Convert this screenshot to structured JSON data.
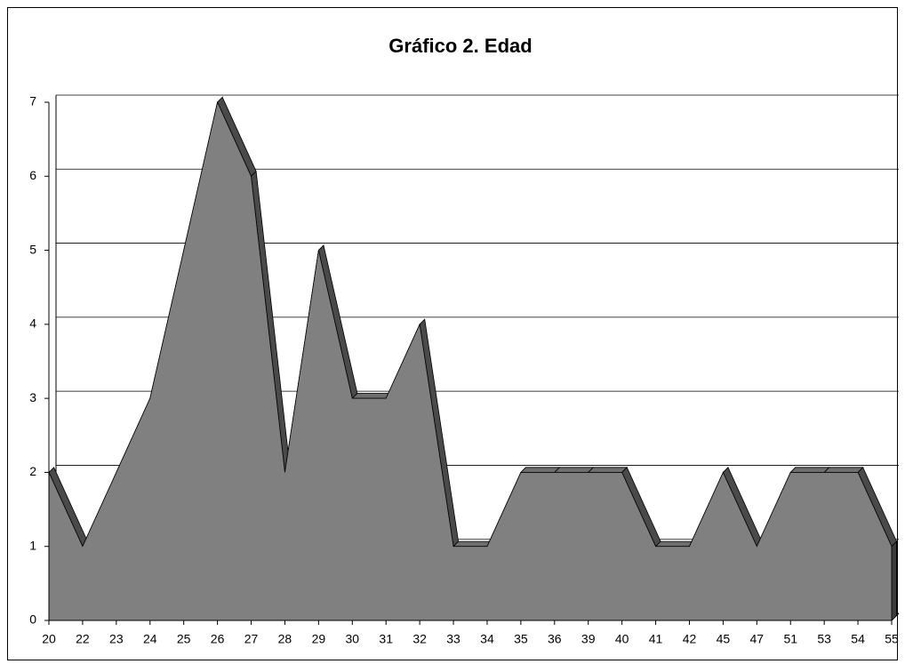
{
  "chart_data": {
    "type": "area",
    "title": "Gráfico 2. Edad",
    "categories": [
      "20",
      "22",
      "23",
      "24",
      "25",
      "26",
      "27",
      "28",
      "29",
      "30",
      "31",
      "32",
      "33",
      "34",
      "35",
      "36",
      "39",
      "40",
      "41",
      "42",
      "45",
      "47",
      "51",
      "53",
      "54",
      "55"
    ],
    "values": [
      2,
      1,
      2,
      3,
      5,
      7,
      6,
      2,
      5,
      3,
      3,
      4,
      1,
      1,
      2,
      2,
      2,
      2,
      1,
      1,
      2,
      1,
      2,
      2,
      2,
      1
    ],
    "color": "#808080",
    "ylim": [
      0,
      7
    ],
    "yticks": [
      0,
      1,
      2,
      3,
      4,
      5,
      6,
      7
    ],
    "grid": true
  }
}
